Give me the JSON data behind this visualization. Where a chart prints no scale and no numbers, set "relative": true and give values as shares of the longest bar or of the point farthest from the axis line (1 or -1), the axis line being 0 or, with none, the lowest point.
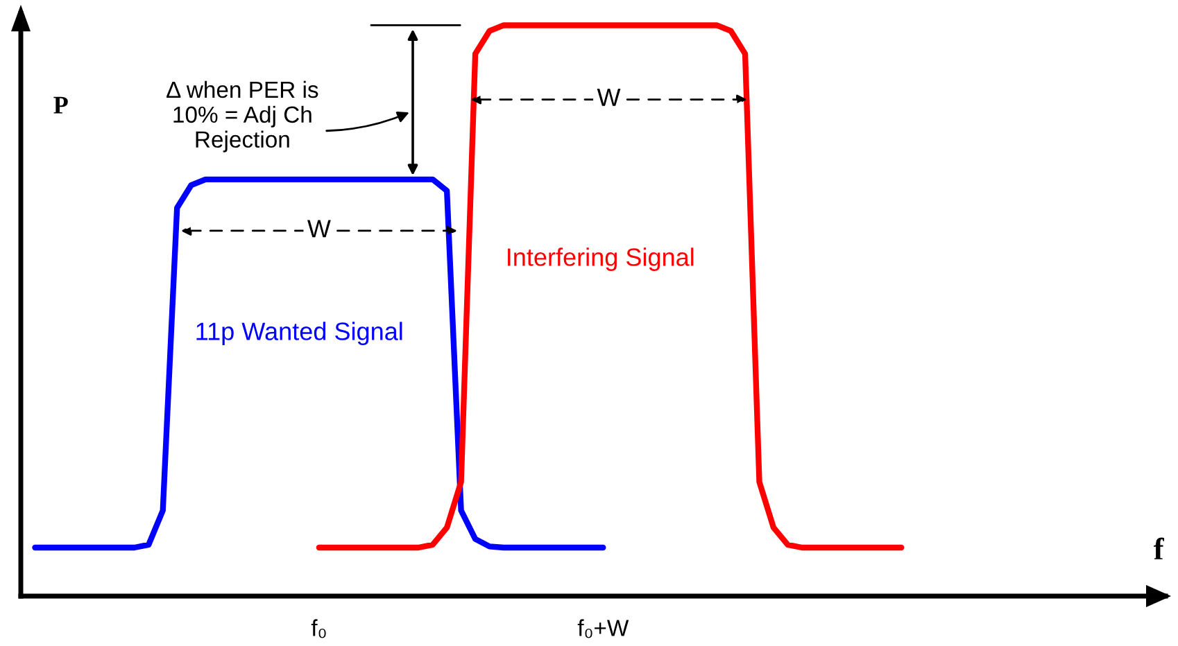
{
  "chart_data": {
    "type": "line",
    "relative": true,
    "xlabel": "f",
    "ylabel": "P",
    "categories": [
      null,
      null,
      null,
      null,
      null,
      null,
      null,
      null,
      null,
      null,
      null,
      null,
      null,
      null,
      null,
      null,
      null,
      null,
      null,
      null,
      "f₀",
      null,
      null,
      null,
      null,
      null,
      null,
      null,
      null,
      null,
      null,
      null,
      null,
      null,
      null,
      null,
      null,
      null,
      null,
      null,
      "f₀+W",
      null,
      null,
      null,
      null,
      null,
      null,
      null,
      null,
      null,
      null,
      null,
      null,
      null,
      null,
      null,
      null,
      null,
      null,
      null,
      null,
      null,
      null,
      null,
      null,
      null,
      null,
      null,
      null,
      null,
      null,
      null,
      null,
      null,
      null,
      null,
      null,
      null,
      null,
      null
    ],
    "legend": false,
    "grid": false,
    "marker": "none",
    "line_style": "solid",
    "series": [
      {
        "name": "11p Wanted Signal",
        "color": "#0000ff",
        "values": [
          0.085,
          0.085,
          0.085,
          0.085,
          0.085,
          0.085,
          0.085,
          0.085,
          0.09,
          0.15,
          0.68,
          0.72,
          0.73,
          0.73,
          0.73,
          0.73,
          0.73,
          0.73,
          0.73,
          0.73,
          0.73,
          0.73,
          0.73,
          0.73,
          0.73,
          0.73,
          0.73,
          0.73,
          0.73,
          0.71,
          0.15,
          0.1,
          0.087,
          0.085,
          0.085,
          0.085,
          0.085,
          0.085,
          0.085,
          0.085,
          0.085,
          null,
          null,
          null,
          null,
          null,
          null,
          null,
          null,
          null,
          null,
          null,
          null,
          null,
          null,
          null,
          null,
          null,
          null,
          null,
          null,
          null,
          null,
          null,
          null,
          null,
          null,
          null,
          null,
          null,
          null,
          null,
          null,
          null,
          null,
          null,
          null,
          null,
          null,
          null
        ]
      },
      {
        "name": "Interfering Signal",
        "color": "#ff0000",
        "values": [
          null,
          null,
          null,
          null,
          null,
          null,
          null,
          null,
          null,
          null,
          null,
          null,
          null,
          null,
          null,
          null,
          null,
          null,
          null,
          null,
          0.085,
          0.085,
          0.085,
          0.085,
          0.085,
          0.085,
          0.085,
          0.085,
          0.09,
          0.12,
          0.2,
          0.95,
          0.99,
          1.0,
          1.0,
          1.0,
          1.0,
          1.0,
          1.0,
          1.0,
          1.0,
          1.0,
          1.0,
          1.0,
          1.0,
          1.0,
          1.0,
          1.0,
          1.0,
          0.99,
          0.95,
          0.2,
          0.12,
          0.09,
          0.085,
          0.085,
          0.085,
          0.085,
          0.085,
          0.085,
          0.085,
          0.085,
          null,
          null,
          null,
          null,
          null,
          null,
          null,
          null,
          null,
          null,
          null,
          null,
          null,
          null,
          null,
          null,
          null,
          null
        ]
      }
    ],
    "annotations": [
      "Δ when PER is 10% = Adj Ch Rejection",
      "W",
      "W"
    ]
  }
}
